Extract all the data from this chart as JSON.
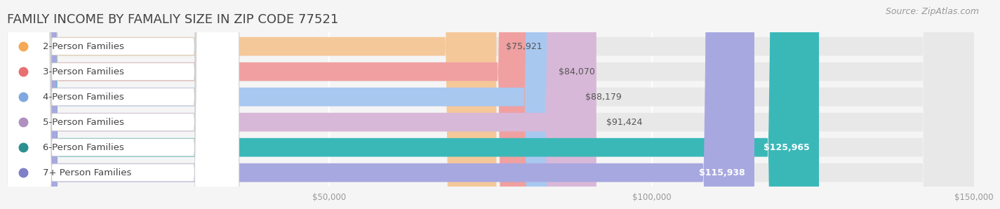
{
  "title": "FAMILY INCOME BY FAMALIY SIZE IN ZIP CODE 77521",
  "source": "Source: ZipAtlas.com",
  "categories": [
    "2-Person Families",
    "3-Person Families",
    "4-Person Families",
    "5-Person Families",
    "6-Person Families",
    "7+ Person Families"
  ],
  "values": [
    75921,
    84070,
    88179,
    91424,
    125965,
    115938
  ],
  "bar_colors": [
    "#f5c89a",
    "#f0a0a0",
    "#a8c8f0",
    "#d8b8d8",
    "#3ab8b8",
    "#a8a8e0"
  ],
  "dot_colors": [
    "#f5a855",
    "#e87070",
    "#80a8e0",
    "#b090c0",
    "#2a9090",
    "#8080c8"
  ],
  "background_color": "#f5f5f5",
  "bar_bg_color": "#e8e8e8",
  "xlim": [
    0,
    150000
  ],
  "xticks": [
    50000,
    100000,
    150000
  ],
  "xtick_labels": [
    "$50,000",
    "$100,000",
    "$150,000"
  ],
  "title_fontsize": 13,
  "label_fontsize": 9.5,
  "value_fontsize": 9,
  "source_fontsize": 9
}
